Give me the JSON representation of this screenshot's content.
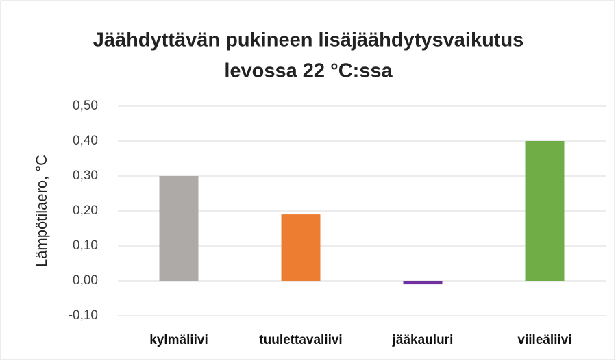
{
  "chart_data": {
    "type": "bar",
    "title": [
      "Jäähdyttävän pukineen lisäjäähdytysvaikutus",
      "levossa 22 °C:ssa"
    ],
    "y_label": "Lämpötilaero, °C",
    "categories": [
      "kylmäliivi",
      "tuulettavaliivi",
      "jääkauluri",
      "viileäliivi"
    ],
    "values": [
      0.3,
      0.19,
      -0.01,
      0.4
    ],
    "colors": [
      "#aeaaa8",
      "#ed7d31",
      "#7030a0",
      "#70ad47"
    ],
    "ylim": [
      -0.1,
      0.5
    ],
    "yticks": [
      {
        "value": -0.1,
        "label": "-0,10"
      },
      {
        "value": 0,
        "label": "0,00"
      },
      {
        "value": 0.1,
        "label": "0,10"
      },
      {
        "value": 0.2,
        "label": "0,20"
      },
      {
        "value": 0.3,
        "label": "0,30"
      },
      {
        "value": 0.4,
        "label": "0,40"
      },
      {
        "value": 0.5,
        "label": "0,50"
      }
    ],
    "grid": true
  }
}
